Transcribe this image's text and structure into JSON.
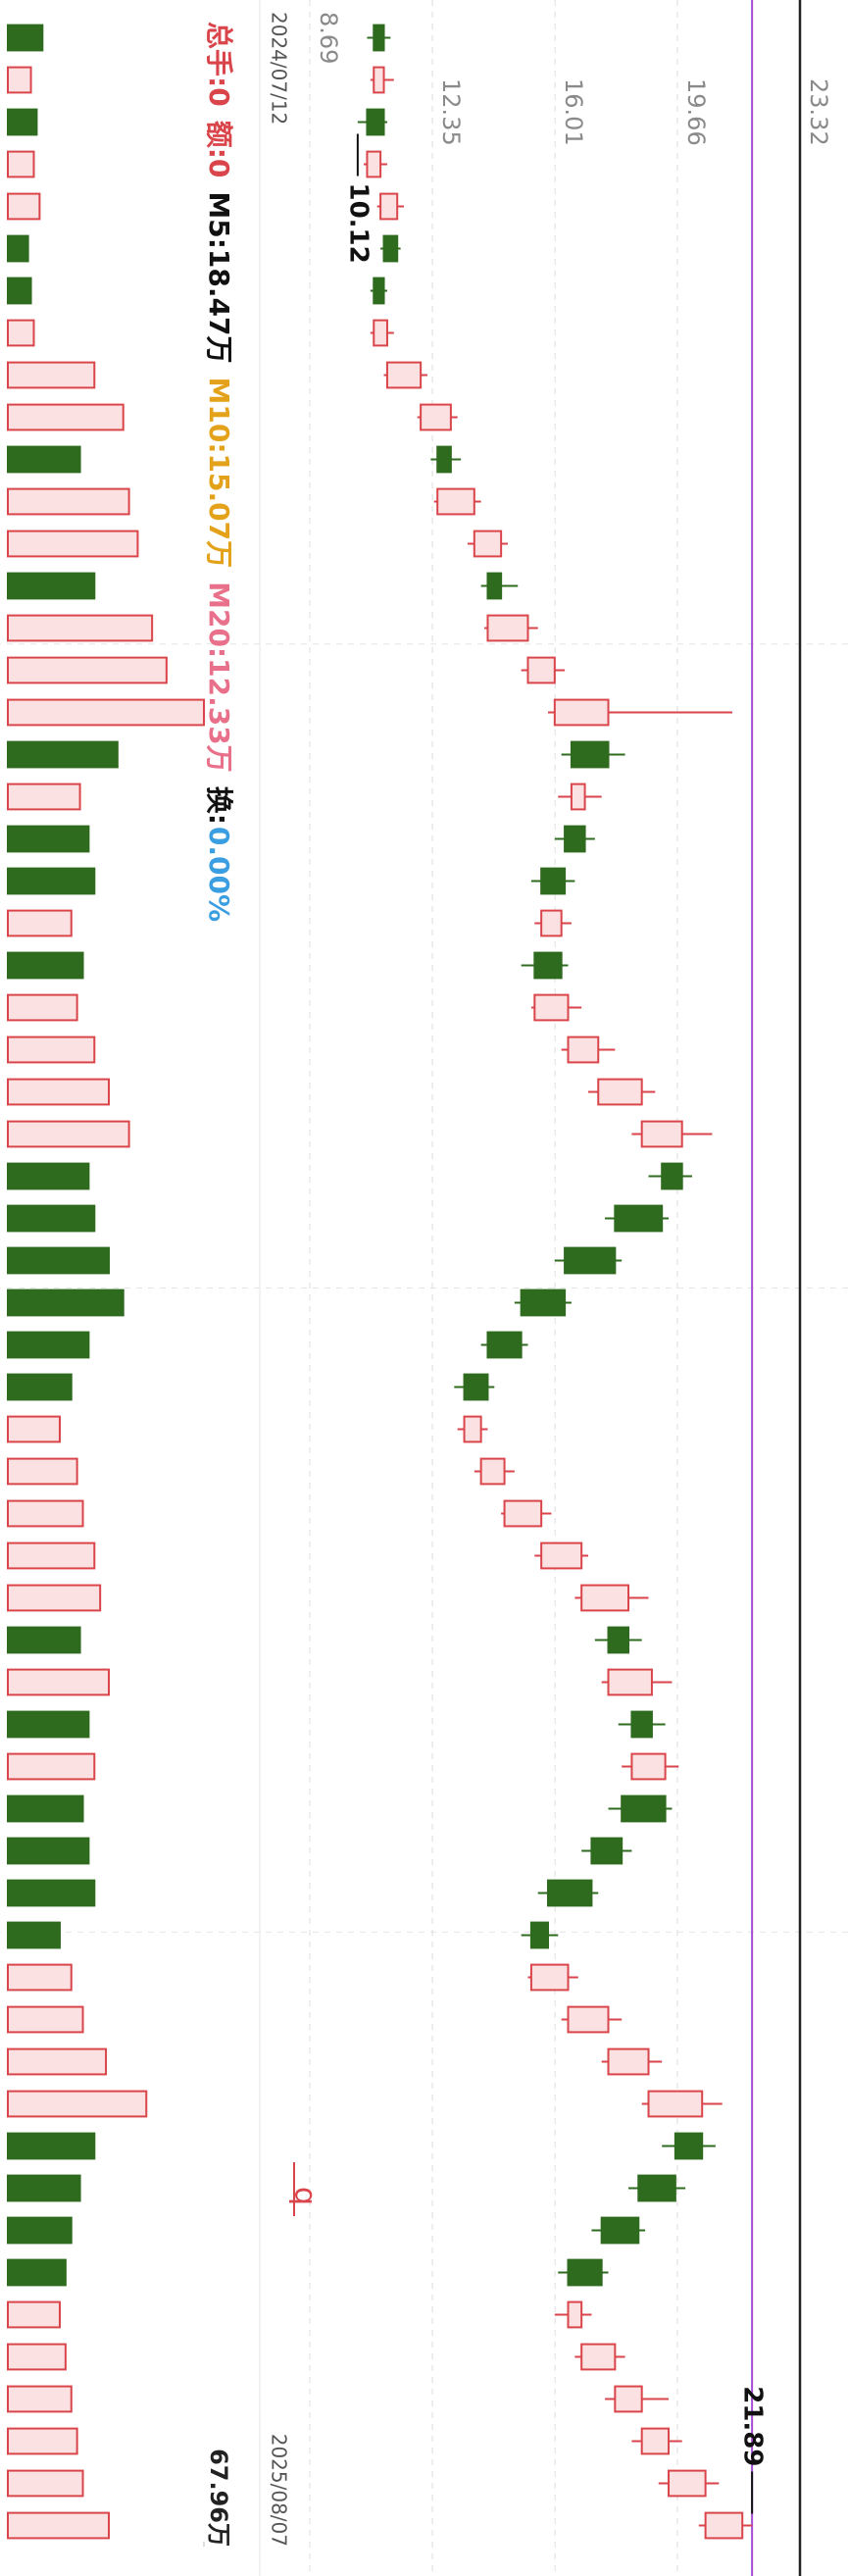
{
  "chart_data": [
    {
      "type": "candlestick",
      "ylim": [
        8.69,
        23.32
      ],
      "yticks": [
        8.69,
        12.35,
        16.01,
        19.66,
        23.32
      ],
      "grid": true,
      "x_labels": [
        "2024/07/12",
        "2025/08/07"
      ],
      "max": 21.89,
      "min": 10.12,
      "icon_text": "q",
      "up_color": "#d9454a",
      "down_color": "#2f6b1f",
      "price_line_color": "#a64bd6",
      "ohlc": [
        [
          10.9,
          11.1,
          10.4,
          10.6
        ],
        [
          10.6,
          11.2,
          10.5,
          10.9
        ],
        [
          10.9,
          11.0,
          10.12,
          10.4
        ],
        [
          10.4,
          11.0,
          10.3,
          10.8
        ],
        [
          10.8,
          11.5,
          10.7,
          11.3
        ],
        [
          11.3,
          11.4,
          10.8,
          10.9
        ],
        [
          10.9,
          11.0,
          10.5,
          10.6
        ],
        [
          10.6,
          11.2,
          10.5,
          11.0
        ],
        [
          11.0,
          12.2,
          10.9,
          12.0
        ],
        [
          12.0,
          13.1,
          11.9,
          12.9
        ],
        [
          12.9,
          13.2,
          12.3,
          12.5
        ],
        [
          12.5,
          13.8,
          12.4,
          13.6
        ],
        [
          13.6,
          14.6,
          13.4,
          14.4
        ],
        [
          14.4,
          14.9,
          13.8,
          14.0
        ],
        [
          14.0,
          15.5,
          13.9,
          15.2
        ],
        [
          15.2,
          16.3,
          15.0,
          16.0
        ],
        [
          16.0,
          21.3,
          15.8,
          17.6
        ],
        [
          17.6,
          18.1,
          16.2,
          16.5
        ],
        [
          16.5,
          17.4,
          16.1,
          16.9
        ],
        [
          16.9,
          17.2,
          16.0,
          16.3
        ],
        [
          16.3,
          16.6,
          15.3,
          15.6
        ],
        [
          15.6,
          16.5,
          15.4,
          16.2
        ],
        [
          16.2,
          16.4,
          15.0,
          15.4
        ],
        [
          15.4,
          16.8,
          15.3,
          16.4
        ],
        [
          16.4,
          17.8,
          16.2,
          17.3
        ],
        [
          17.3,
          19.0,
          17.0,
          18.6
        ],
        [
          18.6,
          20.7,
          18.3,
          19.8
        ],
        [
          19.8,
          20.1,
          18.8,
          19.2
        ],
        [
          19.2,
          19.4,
          17.5,
          17.8
        ],
        [
          17.8,
          18.0,
          16.0,
          16.3
        ],
        [
          16.3,
          16.5,
          14.8,
          15.0
        ],
        [
          15.0,
          15.2,
          13.8,
          14.0
        ],
        [
          14.0,
          14.2,
          13.0,
          13.3
        ],
        [
          13.3,
          14.0,
          13.1,
          13.8
        ],
        [
          13.8,
          14.8,
          13.6,
          14.5
        ],
        [
          14.5,
          15.9,
          14.4,
          15.6
        ],
        [
          15.6,
          17.0,
          15.4,
          16.8
        ],
        [
          16.8,
          18.8,
          16.6,
          18.2
        ],
        [
          18.2,
          18.6,
          17.2,
          17.6
        ],
        [
          17.6,
          19.5,
          17.4,
          18.9
        ],
        [
          18.9,
          19.3,
          17.9,
          18.3
        ],
        [
          18.3,
          19.7,
          18.0,
          19.3
        ],
        [
          19.3,
          19.5,
          17.6,
          18.0
        ],
        [
          18.0,
          18.3,
          16.8,
          17.1
        ],
        [
          17.1,
          17.3,
          15.5,
          15.8
        ],
        [
          15.8,
          16.1,
          15.0,
          15.3
        ],
        [
          15.3,
          16.7,
          15.2,
          16.4
        ],
        [
          16.4,
          18.0,
          16.2,
          17.6
        ],
        [
          17.6,
          19.2,
          17.4,
          18.8
        ],
        [
          18.8,
          21.0,
          18.6,
          20.4
        ],
        [
          20.4,
          20.8,
          19.2,
          19.6
        ],
        [
          19.6,
          19.9,
          18.2,
          18.5
        ],
        [
          18.5,
          18.7,
          17.1,
          17.4
        ],
        [
          17.4,
          17.6,
          16.1,
          16.4
        ],
        [
          16.4,
          17.1,
          16.0,
          16.8
        ],
        [
          16.8,
          18.1,
          16.6,
          17.8
        ],
        [
          17.8,
          19.4,
          17.5,
          18.6
        ],
        [
          18.6,
          19.8,
          18.3,
          19.4
        ],
        [
          19.4,
          20.9,
          19.1,
          20.5
        ],
        [
          20.5,
          21.89,
          20.3,
          21.6
        ]
      ]
    },
    {
      "type": "bar",
      "ylim": [
        0,
        67.96
      ],
      "yticks": [
        {
          "value": 67.96,
          "label": "67.96万"
        }
      ],
      "indicators": [
        {
          "text": "总手:0",
          "color": "#d9454a"
        },
        {
          "text": "额:0",
          "color": "#d9454a"
        },
        {
          "text": "M5:18.47万",
          "color": "#111111"
        },
        {
          "text": "M10:15.07万",
          "color": "#e3a21a"
        },
        {
          "text": "M20:12.33万",
          "color": "#e8708a"
        },
        {
          "text": "换:",
          "color": "#111111"
        },
        {
          "text": "0.00%",
          "color": "#3a9ee0"
        }
      ],
      "values": [
        12,
        8,
        10,
        9,
        11,
        7,
        8,
        9,
        30,
        40,
        25,
        42,
        45,
        30,
        50,
        55,
        67.96,
        38,
        25,
        28,
        30,
        22,
        26,
        24,
        30,
        35,
        42,
        28,
        30,
        35,
        40,
        28,
        22,
        18,
        24,
        26,
        30,
        32,
        25,
        35,
        28,
        30,
        26,
        28,
        30,
        18,
        22,
        26,
        34,
        48,
        30,
        25,
        22,
        20,
        18,
        20,
        22,
        24,
        26,
        35
      ]
    }
  ]
}
